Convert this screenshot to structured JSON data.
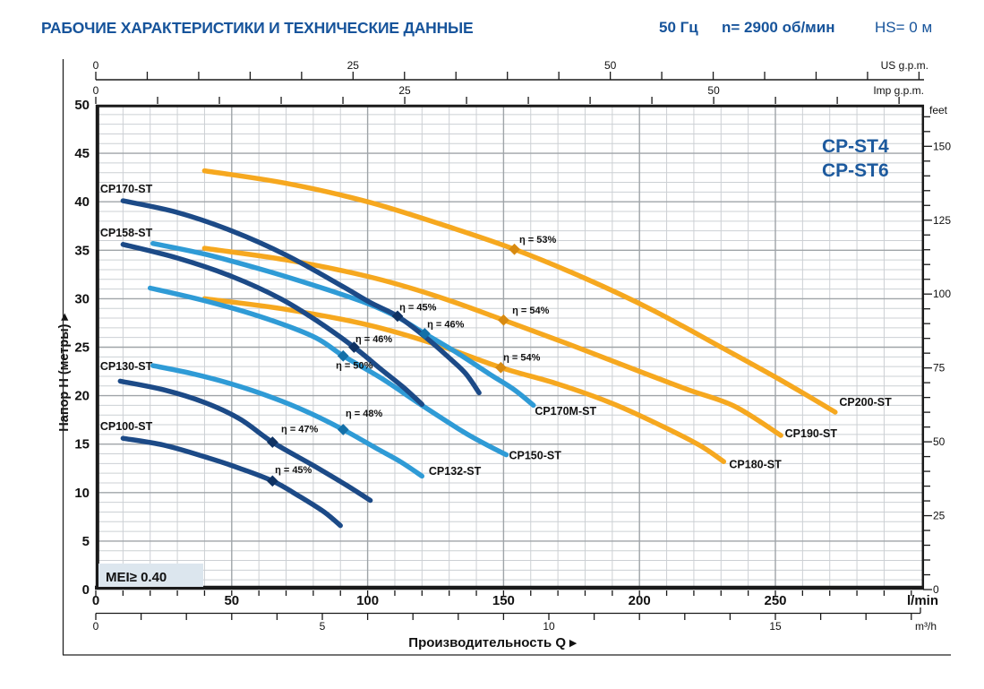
{
  "header": {
    "title": "РАБОЧИЕ ХАРАКТЕРИСТИКИ И ТЕХНИЧЕСКИЕ ДАННЫЕ",
    "frequency": "50 Гц",
    "speed": "n= 2900 об/мин",
    "suction_head": "HS= 0 м"
  },
  "colors": {
    "accent_blue": "#17549b",
    "model_blue": "#1d5a9e",
    "curve_navy": "#1c4a87",
    "curve_blue": "#2f9bd6",
    "curve_orange": "#f6a81f",
    "marker_navy": "#0f3263",
    "marker_blue": "#1470a8",
    "marker_orange": "#d88a10",
    "grid_minor": "#ccd0d4",
    "grid_major": "#9fa4a8",
    "border_black": "#1a1a1a",
    "mei_bg": "#dce6ee",
    "text_dark": "#111111"
  },
  "chart_data": {
    "type": "line",
    "model_group": [
      "CP-ST4",
      "CP-ST6"
    ],
    "mei_label": "MEI≥ 0.40",
    "xlabel": "Производительность Q  ▸",
    "ylabel": "Напор H (метры)  ▸",
    "xlim_lmin": [
      0,
      304.7
    ],
    "ylim_m": [
      0,
      50
    ],
    "grid": "on",
    "x_axis_lmin": {
      "unit": "l/min",
      "labeled_ticks": [
        0,
        50,
        100,
        150,
        200,
        250
      ],
      "minor_step": 10,
      "max": 300
    },
    "x_axis_m3h": {
      "unit": "m³/h",
      "labeled_ticks": [
        0,
        5,
        10,
        15
      ],
      "minor_step": 1,
      "max": 18
    },
    "x_axis_usgpm": {
      "unit": "US g.p.m.",
      "labeled_ticks": [
        0,
        25,
        50
      ],
      "minor_step": 5,
      "max": 80
    },
    "x_axis_impgpm": {
      "unit": "Imp g.p.m.",
      "labeled_ticks": [
        0,
        25,
        50
      ],
      "minor_step": 5,
      "max": 65
    },
    "y_axis_m": {
      "unit": "метры",
      "labeled_ticks": [
        0,
        5,
        10,
        15,
        20,
        25,
        30,
        35,
        40,
        45,
        50
      ]
    },
    "y_axis_feet": {
      "unit": "feet",
      "labeled_ticks": [
        0,
        25,
        50,
        75,
        100,
        125,
        150
      ],
      "minor_step": 5,
      "max": 160
    },
    "series": [
      {
        "name": "CP200-ST",
        "color": "orange",
        "points": [
          [
            40,
            43.2
          ],
          [
            70,
            41.9
          ],
          [
            100,
            40.0
          ],
          [
            130,
            37.4
          ],
          [
            154,
            35.1
          ],
          [
            180,
            32.1
          ],
          [
            205,
            28.8
          ],
          [
            230,
            25.0
          ],
          [
            252,
            21.6
          ],
          [
            272,
            18.3
          ]
        ],
        "label": {
          "q": 273.5,
          "h": 19.3
        },
        "eff": {
          "text": "η = 53%",
          "q": 154,
          "h": 35.1,
          "label_q": 155.8,
          "label_h": 36.1
        }
      },
      {
        "name": "CP190-ST",
        "color": "orange",
        "points": [
          [
            40,
            35.2
          ],
          [
            70,
            34.0
          ],
          [
            100,
            32.3
          ],
          [
            125,
            30.3
          ],
          [
            150,
            27.8
          ],
          [
            175,
            25.2
          ],
          [
            200,
            22.5
          ],
          [
            218,
            20.6
          ],
          [
            235,
            18.9
          ],
          [
            252,
            15.9
          ]
        ],
        "label": {
          "q": 253.5,
          "h": 16.1
        },
        "eff": {
          "text": "η = 54%",
          "q": 150,
          "h": 27.8,
          "label_q": 153.2,
          "label_h": 28.8
        }
      },
      {
        "name": "CP180-ST",
        "color": "orange",
        "points": [
          [
            40,
            30.0
          ],
          [
            70,
            28.9
          ],
          [
            100,
            27.3
          ],
          [
            125,
            25.3
          ],
          [
            149,
            22.9
          ],
          [
            170,
            21.2
          ],
          [
            190,
            19.2
          ],
          [
            208,
            16.9
          ],
          [
            222,
            14.9
          ],
          [
            231,
            13.2
          ]
        ],
        "label": {
          "q": 233.0,
          "h": 12.9
        },
        "eff": {
          "text": "η = 54%",
          "q": 149,
          "h": 22.9,
          "label_q": 149.9,
          "label_h": 23.95
        }
      },
      {
        "name": "CP170M-ST",
        "color": "blue",
        "points": [
          [
            21,
            35.7
          ],
          [
            40,
            34.6
          ],
          [
            60,
            33.1
          ],
          [
            80,
            31.4
          ],
          [
            100,
            29.5
          ],
          [
            111,
            28.1
          ],
          [
            121,
            26.4
          ],
          [
            133,
            24.4
          ],
          [
            145,
            22.2
          ],
          [
            154,
            20.6
          ],
          [
            161,
            19.0
          ]
        ],
        "label": {
          "q": 161.5,
          "h": 18.4
        },
        "eff": {
          "text": "η = 46%",
          "q": 121,
          "h": 26.4,
          "label_q": 121.9,
          "label_h": 27.35
        }
      },
      {
        "name": "CP150-ST",
        "color": "blue",
        "points": [
          [
            20,
            31.1
          ],
          [
            40,
            29.8
          ],
          [
            60,
            28.2
          ],
          [
            80,
            26.1
          ],
          [
            91,
            24.1
          ],
          [
            105,
            21.8
          ],
          [
            120,
            19.0
          ],
          [
            135,
            16.3
          ],
          [
            144,
            14.9
          ],
          [
            151,
            13.9
          ]
        ],
        "label": {
          "q": 152.0,
          "h": 13.8
        },
        "eff": {
          "text": "η = 50%",
          "q": 91,
          "h": 24.1,
          "label_q": 88.3,
          "label_h": 23.1
        }
      },
      {
        "name": "CP132-ST",
        "color": "blue",
        "points": [
          [
            21,
            23.1
          ],
          [
            35,
            22.3
          ],
          [
            50,
            21.2
          ],
          [
            65,
            19.8
          ],
          [
            78,
            18.3
          ],
          [
            91,
            16.5
          ],
          [
            103,
            14.6
          ],
          [
            112,
            13.2
          ],
          [
            120,
            11.7
          ]
        ],
        "label": {
          "q": 122.5,
          "h": 12.2
        },
        "eff": {
          "text": "η = 48%",
          "q": 91,
          "h": 16.5,
          "label_q": 91.9,
          "label_h": 18.15
        }
      },
      {
        "name": "CP170-ST",
        "color": "navy",
        "points": [
          [
            10,
            40.1
          ],
          [
            30,
            38.9
          ],
          [
            50,
            37.0
          ],
          [
            70,
            34.5
          ],
          [
            90,
            31.4
          ],
          [
            101,
            29.6
          ],
          [
            111,
            28.2
          ],
          [
            121,
            26.1
          ],
          [
            130,
            23.9
          ],
          [
            136,
            22.3
          ],
          [
            141,
            20.3
          ]
        ],
        "label": {
          "q": 1.6,
          "h": 41.3
        },
        "eff": {
          "text": "η = 45%",
          "q": 111,
          "h": 28.2,
          "label_q": 111.7,
          "label_h": 29.1
        }
      },
      {
        "name": "CP158-ST",
        "color": "navy",
        "points": [
          [
            10,
            35.6
          ],
          [
            30,
            34.2
          ],
          [
            50,
            32.3
          ],
          [
            68,
            30.0
          ],
          [
            82,
            27.6
          ],
          [
            95,
            25.0
          ],
          [
            105,
            22.7
          ],
          [
            113,
            20.9
          ],
          [
            120,
            19.1
          ]
        ],
        "label": {
          "q": 1.6,
          "h": 36.8
        },
        "eff": {
          "text": "η = 46%",
          "q": 95,
          "h": 25.0,
          "label_q": 95.5,
          "label_h": 25.85
        }
      },
      {
        "name": "CP130-ST",
        "color": "navy",
        "points": [
          [
            9,
            21.5
          ],
          [
            25,
            20.6
          ],
          [
            40,
            19.3
          ],
          [
            53,
            17.6
          ],
          [
            65,
            15.2
          ],
          [
            80,
            12.8
          ],
          [
            92,
            10.8
          ],
          [
            101,
            9.2
          ]
        ],
        "label": {
          "q": 1.6,
          "h": 23.0
        },
        "eff": {
          "text": "η = 47%",
          "q": 65,
          "h": 15.2,
          "label_q": 68.2,
          "label_h": 16.55
        }
      },
      {
        "name": "CP100-ST",
        "color": "navy",
        "points": [
          [
            10,
            15.6
          ],
          [
            25,
            14.9
          ],
          [
            40,
            13.7
          ],
          [
            53,
            12.5
          ],
          [
            65,
            11.2
          ],
          [
            75,
            9.6
          ],
          [
            84,
            8.0
          ],
          [
            90,
            6.6
          ]
        ],
        "label": {
          "q": 1.6,
          "h": 16.8
        },
        "eff": {
          "text": "η = 45%",
          "q": 65,
          "h": 11.2,
          "label_q": 65.9,
          "label_h": 12.35
        }
      }
    ]
  }
}
